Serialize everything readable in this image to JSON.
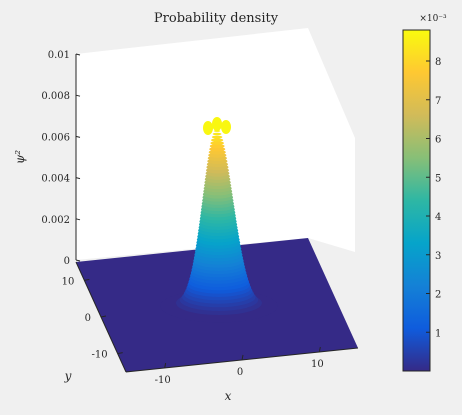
{
  "chart_data": {
    "type": "surface",
    "title": "Probability density",
    "xlabel": "x",
    "ylabel": "y",
    "zlabel": "ψ²",
    "xlim": [
      -15,
      15
    ],
    "ylim": [
      -15,
      15
    ],
    "zlim": [
      0,
      0.01
    ],
    "x_ticks": [
      "-10",
      "0",
      "10"
    ],
    "y_ticks": [
      "-10",
      "0",
      "10"
    ],
    "z_ticks": [
      "0",
      "0.002",
      "0.004",
      "0.006",
      "0.008",
      "0.01"
    ],
    "surface": {
      "shape": "gaussian-like peak centered at origin, flat elsewhere",
      "center": [
        0,
        0
      ],
      "peak_value": 0.0088,
      "approx_sigma": 3.5,
      "floor_value": 0
    },
    "colorbar": {
      "colormap": "parula",
      "range": [
        0,
        0.0088
      ],
      "multiplier": "×10⁻³",
      "ticks": [
        "1",
        "2",
        "3",
        "4",
        "5",
        "6",
        "7",
        "8"
      ]
    },
    "grid": false,
    "colors": {
      "background": "#f0f0f0",
      "axes_background": "#ffffff",
      "parula_low": "#352a87",
      "parula_high": "#f9fb0e"
    }
  }
}
